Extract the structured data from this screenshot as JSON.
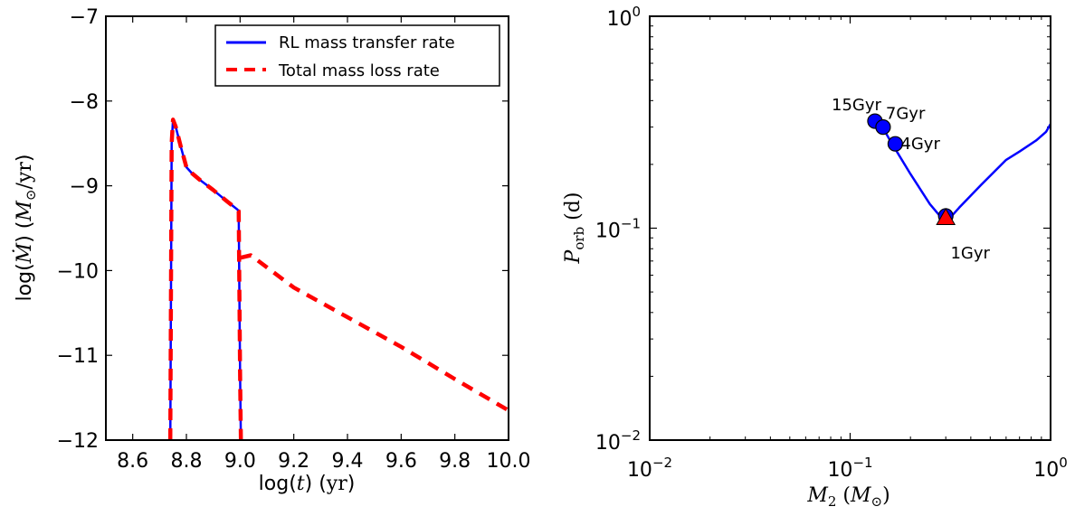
{
  "chart_data": [
    {
      "type": "line",
      "xlabel": "log(t) (yr)",
      "ylabel": "log(Ṁ) (M⊙/yr)",
      "xlim": [
        8.5,
        10.0
      ],
      "ylim": [
        -12,
        -7
      ],
      "x_scale": "linear",
      "y_scale": "linear",
      "xticks": [
        "8.6",
        "8.8",
        "9.0",
        "9.2",
        "9.4",
        "9.6",
        "9.8",
        "10.0"
      ],
      "yticks": [
        "−12",
        "−11",
        "−10",
        "−9",
        "−8",
        "−7"
      ],
      "legend": {
        "placement": "top-right",
        "entries": [
          "RL mass transfer rate",
          "Total mass loss rate"
        ]
      },
      "series": [
        {
          "name": "RL mass transfer rate",
          "color": "#0000ff",
          "style": "solid",
          "x": [
            8.74,
            8.745,
            8.75,
            8.76,
            8.78,
            8.8,
            8.82,
            8.85,
            8.9,
            8.95,
            8.99,
            8.995,
            9.0,
            9.003
          ],
          "y": [
            -12.0,
            -8.5,
            -8.22,
            -8.3,
            -8.55,
            -8.78,
            -8.85,
            -8.93,
            -9.05,
            -9.18,
            -9.28,
            -9.3,
            -11.2,
            -12.0
          ]
        },
        {
          "name": "Total mass loss rate",
          "color": "#ff0000",
          "style": "dashed",
          "x": [
            8.74,
            8.745,
            8.75,
            8.76,
            8.78,
            8.8,
            8.82,
            8.85,
            8.9,
            8.95,
            8.99,
            8.995,
            9.0,
            9.003,
            9.0,
            9.04,
            9.2,
            9.4,
            9.6,
            9.8,
            10.0
          ],
          "y": [
            -12.0,
            -8.5,
            -8.22,
            -8.3,
            -8.55,
            -8.78,
            -8.85,
            -8.93,
            -9.05,
            -9.18,
            -9.28,
            -9.3,
            -11.2,
            -12.0,
            -9.85,
            -9.82,
            -10.2,
            -10.55,
            -10.9,
            -11.28,
            -11.65
          ]
        }
      ]
    },
    {
      "type": "line",
      "xlabel": "M₂ (M⊙)",
      "ylabel": "P_orb (d)",
      "xlim": [
        0.01,
        1.0
      ],
      "ylim": [
        0.01,
        1.0
      ],
      "x_scale": "log",
      "y_scale": "log",
      "xticks": [
        "10^-2",
        "10^-1",
        "10^0"
      ],
      "yticks": [
        "10^-2",
        "10^-1",
        "10^0"
      ],
      "series": [
        {
          "color": "#0000ff",
          "x": [
            0.135,
            0.145,
            0.16,
            0.2,
            0.25,
            0.29,
            0.3,
            0.31,
            0.35,
            0.45,
            0.6,
            0.7,
            0.85,
            0.95,
            1.0
          ],
          "y": [
            0.32,
            0.3,
            0.255,
            0.18,
            0.13,
            0.11,
            0.109,
            0.11,
            0.125,
            0.16,
            0.21,
            0.23,
            0.26,
            0.285,
            0.31
          ]
        }
      ],
      "points": [
        {
          "label": "15Gyr",
          "x": 0.133,
          "y": 0.32,
          "marker": "circle",
          "color": "#0000ff"
        },
        {
          "label": "7Gyr",
          "x": 0.146,
          "y": 0.3,
          "marker": "circle",
          "color": "#0000ff"
        },
        {
          "label": "4Gyr",
          "x": 0.168,
          "y": 0.25,
          "marker": "circle",
          "color": "#0000ff"
        },
        {
          "label": "1Gyr",
          "x": 0.3,
          "y": 0.112,
          "marker": "triangle",
          "color": "#ff0000"
        }
      ]
    }
  ]
}
